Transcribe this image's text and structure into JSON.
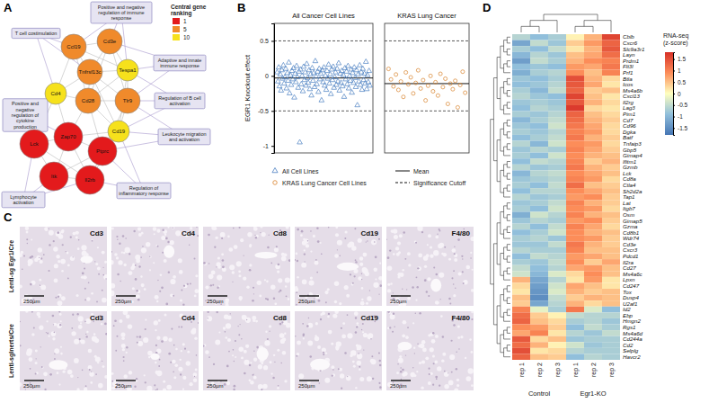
{
  "panels": [
    "A",
    "B",
    "C",
    "D"
  ],
  "network": {
    "legend_title": "Central gene ranking",
    "ranks": [
      1,
      5,
      10
    ],
    "nodes": [
      {
        "label": "Ccl19",
        "rank": 5
      },
      {
        "label": "Cd3e",
        "rank": 5
      },
      {
        "label": "Tnfrsf13c",
        "rank": 5
      },
      {
        "label": "Tespa1",
        "rank": 10
      },
      {
        "label": "Cd4",
        "rank": 10
      },
      {
        "label": "Cd28",
        "rank": 5
      },
      {
        "label": "Tlr9",
        "rank": 5
      },
      {
        "label": "Cd19",
        "rank": 10
      },
      {
        "label": "Lck",
        "rank": 1
      },
      {
        "label": "Zap70",
        "rank": 1
      },
      {
        "label": "Ptprc",
        "rank": 1
      },
      {
        "label": "Itk",
        "rank": 1
      },
      {
        "label": "Il2rb",
        "rank": 1
      }
    ],
    "terms": [
      "Positive and negative regulation of immune response",
      "T cell costimulation",
      "Adaptive and innate immune response",
      "Positive and negative regulation of cytokine production",
      "Regulation of B cell activation",
      "Leukocyte migration and activation",
      "Lymphocyte activation",
      "Regulation of inflammatory response"
    ]
  },
  "histology": {
    "rows": [
      "Lenti-sg Egr1/Cre",
      "Lenti-sgInerts/Cre"
    ],
    "stains": [
      "Cd3",
      "Cd4",
      "Cd8",
      "Cd19",
      "F4/80"
    ],
    "scale_bar": "250µm"
  },
  "chart_data": [
    {
      "type": "scatter",
      "title": "All Cancer Cell Lines",
      "y_label": "EGR1 Knockout effect",
      "series": [
        {
          "name": "All Cell Lines",
          "color": "#4a7fc1",
          "marker": "triangle",
          "values": [
            0.05,
            -0.08,
            0.12,
            -0.15,
            0.02,
            -0.21,
            0.08,
            -0.04,
            0.15,
            -0.11,
            -0.02,
            0.1,
            -0.18,
            0.04,
            -0.07,
            0.19,
            -0.25,
            0.01,
            -0.13,
            0.07,
            -0.05,
            0.11,
            -0.31,
            0.03,
            -0.09,
            0.14,
            -0.02,
            -0.17,
            0.06,
            -0.95,
            0.09,
            -0.12,
            0.0,
            -0.22,
            0.13,
            -0.06,
            0.05,
            -0.14,
            0.17,
            -0.03,
            -0.1,
            0.08,
            -0.19,
            0.02,
            -0.28,
            0.11,
            -0.07,
            0.04,
            -0.16,
            0.21,
            -0.01,
            -0.12,
            0.06,
            -0.23,
            0.1,
            -0.05,
            0.03,
            -0.35,
            0.08,
            -0.09,
            0.12,
            -0.14,
            0.0,
            -0.2,
            0.07,
            -0.04,
            0.16,
            -0.11,
            0.02,
            -0.26,
            0.09,
            -0.06,
            0.13,
            -0.17,
            -0.02,
            0.05,
            -0.13,
            0.1,
            -0.08,
            0.18,
            -0.21,
            0.03,
            -0.1,
            0.07,
            -0.15,
            0.01,
            -0.3,
            0.11,
            -0.05,
            0.06,
            -0.12,
            0.14,
            -0.18,
            0.0,
            -0.07,
            0.09,
            -0.24,
            0.04,
            -0.1,
            0.12,
            -0.03,
            -0.16,
            0.08,
            -0.42,
            0.02,
            -0.08,
            0.15,
            -0.13,
            0.05,
            -0.2,
            0.1,
            -0.06,
            0.03,
            -0.11,
            0.2,
            -0.19,
            0.01,
            -0.09,
            0.07,
            -0.14
          ]
        }
      ],
      "ylim": [
        -1.1,
        0.75
      ],
      "yticks": [
        -1,
        -0.5,
        0,
        0.5
      ],
      "tick_labels": "y",
      "mean": -0.03,
      "mean_label": "Mean",
      "cutoffs": [
        -0.5,
        0.5
      ],
      "cutoff_label": "Significance Cutoff",
      "legend": "bottom"
    },
    {
      "type": "scatter",
      "title": "KRAS Lung Cancer",
      "series": [
        {
          "name": "KRAS Lung Cancer Cell Lines",
          "color": "#d9822b",
          "marker": "circle",
          "values": [
            0.1,
            -0.05,
            -0.15,
            0.02,
            -0.2,
            -0.08,
            -0.3,
            0.05,
            -0.12,
            -0.02,
            -0.25,
            -0.1,
            0.08,
            -0.18,
            -0.06,
            -0.35,
            -0.14,
            0.0,
            -0.22,
            -0.09,
            -0.28,
            0.03,
            -0.16,
            -0.04,
            -0.4,
            -0.11,
            -0.19,
            -0.07,
            -0.45,
            -0.13,
            0.06,
            -0.24
          ]
        }
      ],
      "ylim": [
        -1.1,
        0.75
      ],
      "tick_labels": false,
      "mean": -0.11,
      "cutoffs": [
        -0.5,
        0.5
      ]
    },
    {
      "type": "heatmap",
      "rows": [
        "Cblb",
        "Cxcr6",
        "Slc9a3r1",
        "Layn",
        "Prdm1",
        "Flt3l",
        "Prf1",
        "Btla",
        "Icos",
        "Ms4a6b",
        "Cxcl13",
        "Il2rg",
        "Lag3",
        "Pim1",
        "Cd7",
        "Cd96",
        "Dgka",
        "Batf",
        "Tnfaip3",
        "Gbp5",
        "Gimap4",
        "Ifitm1",
        "Gzmb",
        "Lck",
        "Cd8a",
        "Ctla4",
        "Sh2d2a",
        "Tap1",
        "Lat",
        "Itgb7",
        "Osm",
        "Gimap5",
        "Gzma",
        "Cd8b1",
        "Wdr74",
        "Cd3e",
        "Cxcr3",
        "Pdcd1",
        "Il2ra",
        "Cd27",
        "Ms4a6c",
        "Lpxn",
        "Cd247",
        "Tox",
        "Dusp4",
        "U2af1",
        "Id2",
        "Ebp",
        "Hmgn2",
        "Rgs1",
        "Ms4a6d",
        "Cd244a",
        "Cd2",
        "Selplg",
        "Havcr2"
      ],
      "columns": [
        "rep 1",
        "rep 2",
        "rep 3",
        "rep 1",
        "rep 2",
        "rep 3"
      ],
      "groups": [
        {
          "name": "Control",
          "size": 3
        },
        {
          "name": "Egr1-KO",
          "size": 3
        }
      ],
      "values": [
        [
          -0.6,
          -0.9,
          -0.7,
          0.1,
          0.6,
          1.6
        ],
        [
          -1.2,
          -0.5,
          -0.8,
          0.4,
          0.8,
          1.3
        ],
        [
          -0.7,
          -0.9,
          -0.5,
          0.2,
          0.6,
          1.4
        ],
        [
          -1.0,
          -0.6,
          -0.8,
          0.5,
          0.7,
          1.2
        ],
        [
          -1.3,
          -0.5,
          -0.7,
          0.6,
          0.9,
          1.0
        ],
        [
          -0.9,
          -0.8,
          -0.9,
          0.8,
          0.7,
          1.1
        ],
        [
          -1.1,
          -0.7,
          -0.6,
          0.9,
          0.5,
          1.0
        ],
        [
          -0.8,
          -0.9,
          -0.7,
          1.5,
          0.6,
          0.3
        ],
        [
          -0.9,
          -0.8,
          -0.6,
          1.4,
          0.7,
          0.2
        ],
        [
          -0.7,
          -1.0,
          -0.5,
          1.3,
          0.4,
          0.5
        ],
        [
          -0.6,
          -0.8,
          -0.9,
          1.6,
          0.5,
          0.2
        ],
        [
          -0.8,
          -0.7,
          -0.8,
          1.4,
          0.6,
          0.3
        ],
        [
          -0.9,
          -0.6,
          -0.7,
          1.7,
          0.3,
          0.2
        ],
        [
          -0.7,
          -0.8,
          -0.6,
          1.3,
          0.5,
          0.3
        ],
        [
          -1.0,
          -0.7,
          -0.5,
          1.2,
          0.6,
          0.4
        ],
        [
          -0.8,
          -0.9,
          -0.4,
          1.1,
          0.7,
          0.3
        ],
        [
          -0.7,
          -0.8,
          -0.6,
          1.0,
          0.8,
          0.3
        ],
        [
          -0.9,
          -0.7,
          -0.5,
          1.1,
          0.6,
          0.4
        ],
        [
          -0.6,
          -1.0,
          -0.4,
          0.9,
          0.8,
          0.3
        ],
        [
          -0.8,
          -0.6,
          -0.7,
          1.0,
          0.7,
          0.4
        ],
        [
          -0.7,
          -0.9,
          -0.4,
          0.9,
          0.6,
          0.5
        ],
        [
          -0.9,
          -0.5,
          -0.6,
          1.0,
          0.4,
          0.6
        ],
        [
          -0.6,
          -0.8,
          -0.7,
          1.1,
          0.6,
          0.4
        ],
        [
          -1.0,
          -0.6,
          -0.5,
          0.9,
          0.7,
          0.5
        ],
        [
          -0.8,
          -0.7,
          -0.6,
          1.0,
          0.8,
          0.3
        ],
        [
          -0.7,
          -0.9,
          -0.5,
          1.2,
          0.5,
          0.4
        ],
        [
          -0.9,
          -0.6,
          -0.6,
          0.9,
          0.7,
          0.5
        ],
        [
          -0.6,
          -0.8,
          -0.7,
          0.8,
          0.9,
          0.4
        ],
        [
          -0.8,
          -0.7,
          -0.5,
          1.0,
          0.6,
          0.4
        ],
        [
          -0.7,
          -0.9,
          -0.4,
          0.9,
          0.8,
          0.3
        ],
        [
          -1.1,
          -0.4,
          -0.6,
          1.0,
          0.6,
          0.5
        ],
        [
          -0.8,
          -0.6,
          -0.7,
          0.8,
          0.9,
          0.4
        ],
        [
          -0.6,
          -0.9,
          -0.5,
          1.0,
          0.7,
          0.3
        ],
        [
          -0.9,
          -0.7,
          -0.4,
          0.9,
          0.6,
          0.5
        ],
        [
          -0.7,
          -0.6,
          -0.8,
          0.9,
          0.8,
          0.4
        ],
        [
          -0.8,
          -0.8,
          -0.5,
          1.1,
          0.6,
          0.4
        ],
        [
          -0.6,
          -0.7,
          -0.7,
          1.0,
          0.5,
          0.5
        ],
        [
          -0.9,
          -0.5,
          -0.6,
          0.8,
          0.7,
          0.5
        ],
        [
          -0.7,
          -0.8,
          -0.5,
          0.9,
          0.4,
          0.7
        ],
        [
          -0.5,
          -0.9,
          -0.6,
          0.7,
          0.8,
          0.5
        ],
        [
          -0.4,
          -1.0,
          -0.3,
          0.3,
          0.9,
          0.5
        ],
        [
          0.6,
          -1.2,
          -0.6,
          0.2,
          0.8,
          0.2
        ],
        [
          0.3,
          -1.3,
          -0.4,
          0.7,
          0.5,
          0.2
        ],
        [
          0.2,
          -1.4,
          -0.3,
          0.6,
          0.4,
          0.5
        ],
        [
          0.5,
          -1.5,
          -0.5,
          0.4,
          0.6,
          0.5
        ],
        [
          0.4,
          -1.2,
          -0.6,
          0.6,
          0.3,
          0.5
        ],
        [
          1.0,
          -0.2,
          -0.7,
          1.1,
          -0.3,
          -0.9
        ],
        [
          1.2,
          0.4,
          0.1,
          -0.5,
          -0.6,
          -0.6
        ],
        [
          1.3,
          0.5,
          0.3,
          -0.7,
          -0.6,
          -0.8
        ],
        [
          0.9,
          0.8,
          0.4,
          -0.9,
          -0.5,
          -0.7
        ],
        [
          0.7,
          1.0,
          0.2,
          -0.6,
          -0.8,
          -0.5
        ],
        [
          1.4,
          0.3,
          0.5,
          -0.8,
          -0.7,
          -0.7
        ],
        [
          1.2,
          0.6,
          0.1,
          -0.4,
          -0.8,
          -0.7
        ],
        [
          1.5,
          0.2,
          0.3,
          -0.6,
          -0.7,
          -0.7
        ],
        [
          1.3,
          0.5,
          0.4,
          -0.9,
          -0.6,
          -0.7
        ]
      ],
      "color_range": [
        -1.8,
        1.8
      ],
      "color_ticks": [
        1.5,
        1,
        0.5,
        0,
        -0.5,
        -1,
        -1.5
      ],
      "color_title": "RNA-seq (z-score)"
    }
  ]
}
